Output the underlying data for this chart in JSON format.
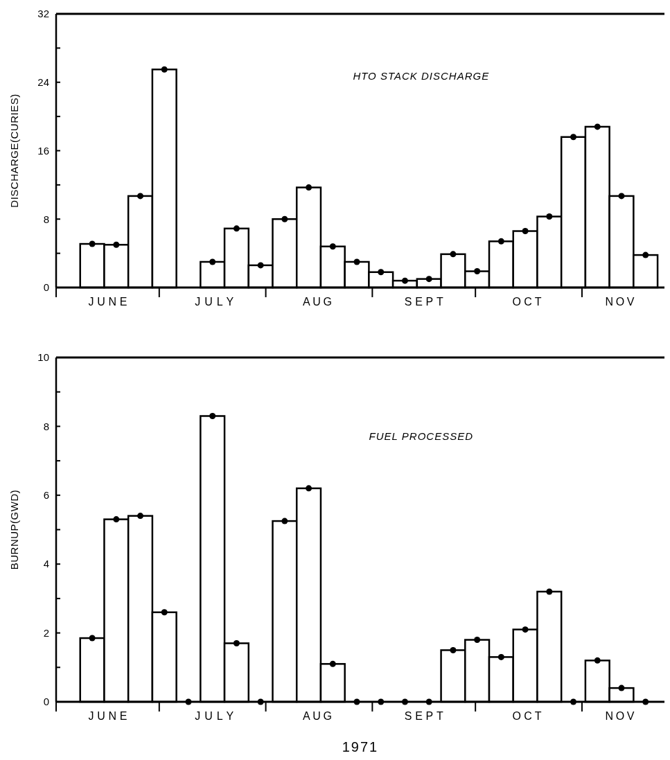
{
  "chart_data": [
    {
      "type": "bar",
      "title": "HTO STACK DISCHARGE",
      "ylabel": "DISCHARGE(CURIES)",
      "x": [
        "1971-06-11T12:00",
        "1971-06-18T12:00",
        "1971-06-25T12:00",
        "1971-07-02T12:00",
        "1971-07-09T12:00",
        "1971-07-16T12:00",
        "1971-07-23T12:00",
        "1971-07-30T12:00",
        "1971-08-06T12:00",
        "1971-08-13T12:00",
        "1971-08-20T12:00",
        "1971-08-27T12:00",
        "1971-09-03T12:00",
        "1971-09-10T12:00",
        "1971-09-17T12:00",
        "1971-09-24T12:00",
        "1971-10-01T12:00",
        "1971-10-08T12:00",
        "1971-10-15T12:00",
        "1971-10-22T12:00",
        "1971-10-29T12:00",
        "1971-11-05T12:00",
        "1971-11-12T12:00",
        "1971-11-19T12:00"
      ],
      "series": [
        {
          "color": "#ffffff",
          "values": [
            5.1,
            5.0,
            10.7,
            25.5,
            null,
            3.0,
            6.9,
            2.6,
            8.0,
            11.7,
            4.8,
            3.0,
            1.8,
            0.8,
            1.0,
            3.9,
            1.9,
            5.4,
            6.6,
            8.3,
            17.6,
            18.8,
            10.7,
            3.8
          ]
        },
        {
          "type": "scatter",
          "color": "#000000",
          "marker": "circle",
          "values": [
            5.1,
            5.0,
            10.7,
            25.5,
            null,
            3.0,
            6.9,
            2.6,
            8.0,
            11.7,
            4.8,
            3.0,
            1.8,
            0.8,
            1.0,
            3.9,
            1.9,
            5.4,
            6.6,
            8.3,
            17.6,
            18.8,
            10.7,
            3.8
          ]
        }
      ],
      "xlim": [
        "1971-06-01",
        "1971-11-25"
      ],
      "xticks": [
        {
          "value": "1971-06-01",
          "label": null
        },
        {
          "value": "1971-06-16",
          "label": "JUNE"
        },
        {
          "value": "1971-07-01",
          "label": null
        },
        {
          "value": "1971-07-17",
          "label": "JULY"
        },
        {
          "value": "1971-08-01",
          "label": null
        },
        {
          "value": "1971-08-16",
          "label": "AUG"
        },
        {
          "value": "1971-09-01",
          "label": null
        },
        {
          "value": "1971-09-16",
          "label": "SEPT"
        },
        {
          "value": "1971-10-01",
          "label": null
        },
        {
          "value": "1971-10-16",
          "label": "OCT"
        },
        {
          "value": "1971-11-01",
          "label": null
        },
        {
          "value": "1971-11-12",
          "label": "NOV"
        }
      ],
      "ylim": [
        0,
        32
      ],
      "yticks": [
        0,
        {
          "value": 4,
          "label": null
        },
        8,
        {
          "value": 12,
          "label": null
        },
        16,
        {
          "value": 20,
          "label": null
        },
        24,
        {
          "value": 28,
          "label": null
        },
        32
      ]
    },
    {
      "type": "bar",
      "title": "FUEL PROCESSED",
      "ylabel": "BURNUP(GWD)",
      "xlabel": "1971",
      "x": [
        "1971-06-11T12:00",
        "1971-06-18T12:00",
        "1971-06-25T12:00",
        "1971-07-02T12:00",
        "1971-07-09T12:00",
        "1971-07-16T12:00",
        "1971-07-23T12:00",
        "1971-07-30T12:00",
        "1971-08-06T12:00",
        "1971-08-13T12:00",
        "1971-08-20T12:00",
        "1971-08-27T12:00",
        "1971-09-03T12:00",
        "1971-09-10T12:00",
        "1971-09-17T12:00",
        "1971-09-24T12:00",
        "1971-10-01T12:00",
        "1971-10-08T12:00",
        "1971-10-15T12:00",
        "1971-10-22T12:00",
        "1971-10-29T12:00",
        "1971-11-05T12:00",
        "1971-11-12T12:00",
        "1971-11-19T12:00"
      ],
      "series": [
        {
          "color": "#ffffff",
          "values": [
            1.85,
            5.3,
            5.4,
            2.6,
            0,
            8.3,
            1.7,
            0,
            5.25,
            6.2,
            1.1,
            0,
            0,
            0,
            0,
            1.5,
            1.8,
            1.3,
            2.1,
            3.2,
            0,
            1.2,
            0.4,
            0
          ]
        },
        {
          "type": "scatter",
          "color": "#000000",
          "marker": "circle",
          "values": [
            1.85,
            5.3,
            5.4,
            2.6,
            0,
            8.3,
            1.7,
            0,
            5.25,
            6.2,
            1.1,
            0,
            0,
            0,
            0,
            1.5,
            1.8,
            1.3,
            2.1,
            3.2,
            0,
            1.2,
            0.4,
            0
          ]
        }
      ],
      "xlim": [
        "1971-06-01",
        "1971-11-25"
      ],
      "xticks": [
        {
          "value": "1971-06-01",
          "label": null
        },
        {
          "value": "1971-06-16",
          "label": "JUNE"
        },
        {
          "value": "1971-07-01",
          "label": null
        },
        {
          "value": "1971-07-17",
          "label": "JULY"
        },
        {
          "value": "1971-08-01",
          "label": null
        },
        {
          "value": "1971-08-16",
          "label": "AUG"
        },
        {
          "value": "1971-09-01",
          "label": null
        },
        {
          "value": "1971-09-16",
          "label": "SEPT"
        },
        {
          "value": "1971-10-01",
          "label": null
        },
        {
          "value": "1971-10-16",
          "label": "OCT"
        },
        {
          "value": "1971-11-01",
          "label": null
        },
        {
          "value": "1971-11-12",
          "label": "NOV"
        }
      ],
      "ylim": [
        0,
        10
      ],
      "yticks": [
        0,
        {
          "value": 1,
          "label": null
        },
        2,
        {
          "value": 3,
          "label": null
        },
        4,
        {
          "value": 5,
          "label": null
        },
        6,
        {
          "value": 7,
          "label": null
        },
        8,
        {
          "value": 9,
          "label": null
        },
        10
      ]
    }
  ]
}
